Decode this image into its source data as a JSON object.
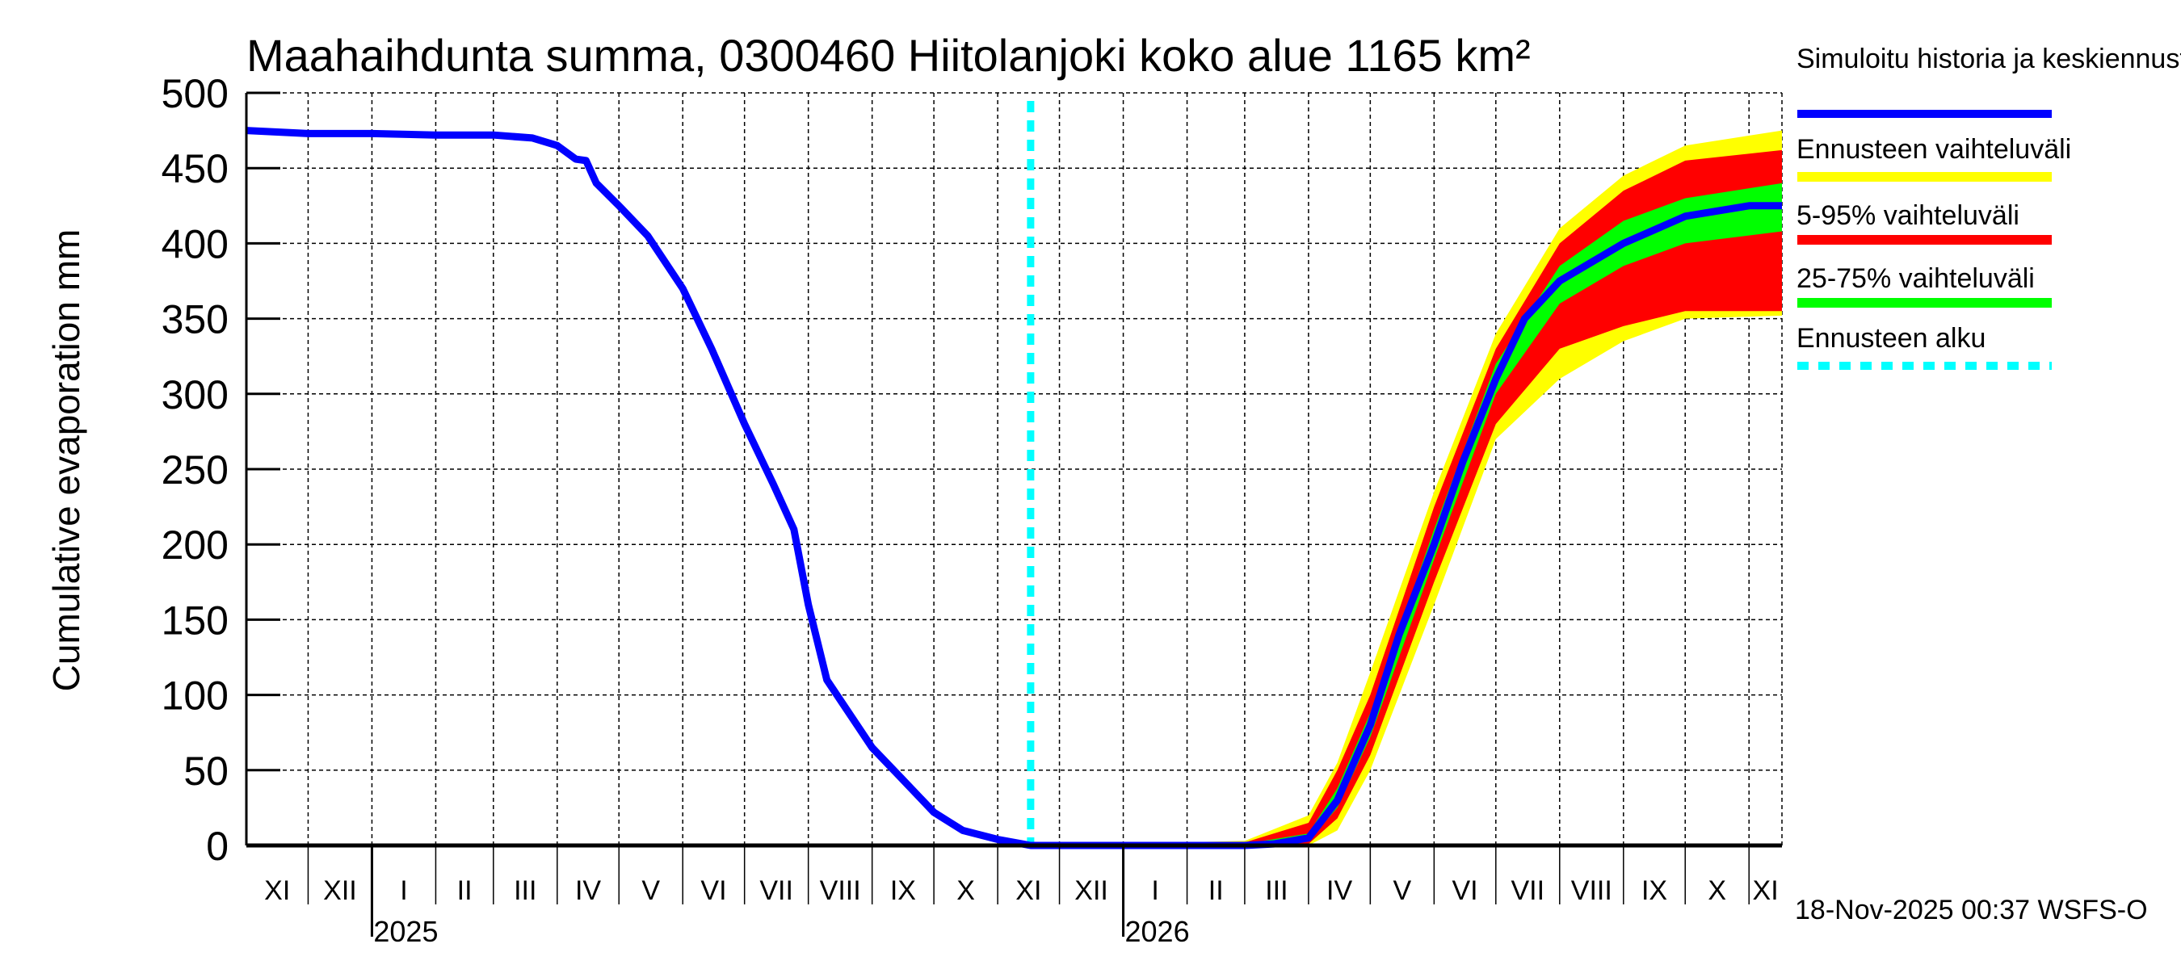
{
  "chart_data": {
    "type": "area",
    "title": "Maahaihdunta summa, 0300460 Hiitolanjoki koko alue 1165 km²",
    "ylabel": "Cumulative evaporation   mm",
    "xlabel": "",
    "ylim": [
      0,
      500
    ],
    "yticks": [
      0,
      50,
      100,
      150,
      200,
      250,
      300,
      350,
      400,
      450,
      500
    ],
    "xlim": [
      "2024-11-01",
      "2026-11-17"
    ],
    "grid": true,
    "month_labels": [
      "XI",
      "XII",
      "I",
      "II",
      "III",
      "IV",
      "V",
      "VI",
      "VII",
      "VIII",
      "IX",
      "X",
      "XI",
      "XII",
      "I",
      "II",
      "III",
      "IV",
      "V",
      "VI",
      "VII",
      "VIII",
      "IX",
      "X",
      "XI"
    ],
    "year_labels": [
      {
        "year": "2025",
        "date": "2025-01-01"
      },
      {
        "year": "2026",
        "date": "2026-01-01"
      }
    ],
    "forecast_start": "2025-11-17",
    "legend_placement": "right",
    "colors": {
      "history": "#0000ff",
      "range": "#ffff00",
      "p5_95": "#ff0000",
      "p25_75": "#00ff00",
      "forecast_start": "#00ffff"
    },
    "series": [
      {
        "name": "Simuloitu historia ja keskiennuste",
        "points": [
          [
            "2024-11-01",
            475
          ],
          [
            "2024-12-01",
            473
          ],
          [
            "2025-01-01",
            473
          ],
          [
            "2025-02-01",
            472
          ],
          [
            "2025-03-01",
            472
          ],
          [
            "2025-03-20",
            470
          ],
          [
            "2025-04-01",
            465
          ],
          [
            "2025-04-10",
            456
          ],
          [
            "2025-04-15",
            455
          ],
          [
            "2025-04-20",
            440
          ],
          [
            "2025-05-01",
            425
          ],
          [
            "2025-05-15",
            405
          ],
          [
            "2025-06-01",
            370
          ],
          [
            "2025-06-15",
            330
          ],
          [
            "2025-07-01",
            280
          ],
          [
            "2025-07-15",
            240
          ],
          [
            "2025-07-25",
            210
          ],
          [
            "2025-08-01",
            160
          ],
          [
            "2025-08-10",
            110
          ],
          [
            "2025-09-01",
            65
          ],
          [
            "2025-09-15",
            45
          ],
          [
            "2025-10-01",
            22
          ],
          [
            "2025-10-15",
            10
          ],
          [
            "2025-11-01",
            4
          ],
          [
            "2025-11-17",
            0
          ],
          [
            "2026-03-01",
            0
          ],
          [
            "2026-03-15",
            1
          ],
          [
            "2026-04-01",
            5
          ],
          [
            "2026-04-15",
            30
          ],
          [
            "2026-05-01",
            80
          ],
          [
            "2026-05-15",
            140
          ],
          [
            "2026-06-01",
            200
          ],
          [
            "2026-06-15",
            255
          ],
          [
            "2026-07-01",
            310
          ],
          [
            "2026-07-15",
            350
          ],
          [
            "2026-08-01",
            375
          ],
          [
            "2026-09-01",
            400
          ],
          [
            "2026-10-01",
            418
          ],
          [
            "2026-11-01",
            425
          ],
          [
            "2026-11-17",
            425
          ]
        ]
      },
      {
        "name": "Ennusteen vaihteluväli",
        "band": "min-max"
      },
      {
        "name": "5-95% vaihteluväli",
        "band": "p5-p95"
      },
      {
        "name": "25-75% vaihteluväli",
        "band": "p25-p75"
      },
      {
        "name": "Ennusteen alku",
        "type": "vline"
      }
    ],
    "bands": {
      "dates": [
        "2025-11-17",
        "2026-03-01",
        "2026-04-01",
        "2026-04-15",
        "2026-05-01",
        "2026-06-01",
        "2026-07-01",
        "2026-08-01",
        "2026-09-01",
        "2026-10-01",
        "2026-11-17"
      ],
      "min": [
        0,
        0,
        0,
        10,
        50,
        160,
        270,
        310,
        335,
        350,
        352
      ],
      "p5": [
        0,
        0,
        1,
        18,
        60,
        175,
        280,
        330,
        345,
        355,
        355
      ],
      "p25": [
        0,
        0,
        3,
        25,
        72,
        190,
        300,
        360,
        385,
        400,
        408
      ],
      "p75": [
        0,
        1,
        8,
        38,
        88,
        210,
        320,
        385,
        415,
        430,
        440
      ],
      "p95": [
        0,
        2,
        15,
        50,
        100,
        225,
        330,
        400,
        435,
        455,
        462
      ],
      "max": [
        0,
        3,
        20,
        55,
        115,
        235,
        340,
        410,
        445,
        465,
        475
      ]
    },
    "footer": "18-Nov-2025 00:37 WSFS-O"
  }
}
